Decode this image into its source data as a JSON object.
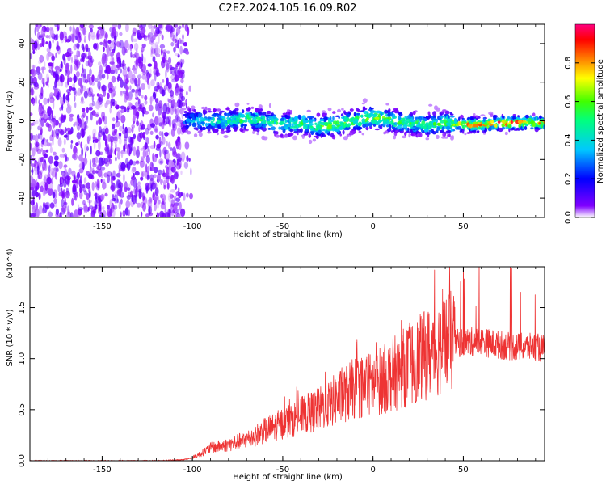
{
  "title": "C2E2.2024.105.16.09.R02",
  "chart_data": [
    {
      "type": "heatmap",
      "xlabel": "Height of straight line (km)",
      "ylabel": "Frequency (Hz)",
      "xlim": [
        -190,
        95
      ],
      "ylim": [
        -50,
        50
      ],
      "x_ticks": [
        -150,
        -100,
        -50,
        0,
        50
      ],
      "y_ticks": [
        -40,
        -20,
        0,
        20,
        40
      ],
      "grid": false,
      "colorbar": {
        "label": "Normalized spectral amplitude",
        "range": [
          0,
          1
        ],
        "ticks": [
          0.0,
          0.2,
          0.4,
          0.6,
          0.8
        ],
        "colormap": [
          "#ffffff",
          "#8000ff",
          "#0000ff",
          "#00c8ff",
          "#00ff80",
          "#40ff00",
          "#ffff00",
          "#ff8000",
          "#ff0000",
          "#ff0080"
        ]
      },
      "ridge": {
        "x": [
          -105,
          -90,
          -80,
          -70,
          -60,
          -50,
          -40,
          -30,
          -20,
          -10,
          0,
          10,
          20,
          30,
          40,
          50,
          60,
          70,
          80,
          90,
          95
        ],
        "frequency": [
          0,
          0,
          0,
          1,
          0,
          -2,
          -1,
          -3,
          -2,
          0,
          2,
          0,
          -1,
          -2,
          -1,
          -2,
          -2,
          -1,
          -1,
          -1,
          -1
        ],
        "peak_amplitude": [
          0.35,
          0.45,
          0.5,
          0.55,
          0.5,
          0.55,
          0.55,
          0.6,
          0.6,
          0.6,
          0.65,
          0.6,
          0.55,
          0.55,
          0.6,
          0.8,
          0.85,
          0.9,
          0.9,
          0.85,
          0.8
        ]
      },
      "noise_region_x": [
        -190,
        -105
      ]
    },
    {
      "type": "line",
      "xlabel": "Height of straight line (km)",
      "ylabel": "SNR (10 * v/v)",
      "y_multiplier": "(x10^4)",
      "xlim": [
        -190,
        95
      ],
      "ylim": [
        0,
        1.9
      ],
      "x_ticks": [
        -150,
        -100,
        -50,
        0,
        50
      ],
      "y_ticks": [
        0.0,
        0.5,
        1.0,
        1.5
      ],
      "grid": false,
      "series": [
        {
          "color": "#ee3333",
          "x": [
            -190,
            -120,
            -105,
            -100,
            -95,
            -90,
            -80,
            -70,
            -60,
            -50,
            -40,
            -30,
            -20,
            -10,
            0,
            10,
            20,
            30,
            40,
            50,
            60,
            70,
            80,
            90,
            95
          ],
          "y": [
            0.0,
            0.0,
            0.01,
            0.03,
            0.07,
            0.12,
            0.15,
            0.2,
            0.28,
            0.35,
            0.42,
            0.48,
            0.58,
            0.68,
            0.72,
            0.8,
            0.9,
            1.0,
            1.1,
            1.15,
            1.15,
            1.12,
            1.1,
            1.1,
            1.08
          ]
        }
      ]
    }
  ]
}
